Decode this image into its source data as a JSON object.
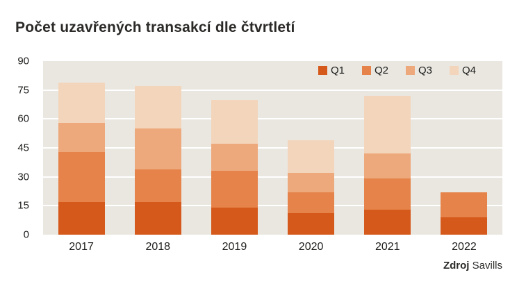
{
  "source": {
    "label": "Zdroj",
    "value": "Savills"
  },
  "chart_data": {
    "type": "bar",
    "stacked": true,
    "title": "Počet uzavřených transakcí dle čtvrtletí",
    "categories": [
      "2017",
      "2018",
      "2019",
      "2020",
      "2021",
      "2022"
    ],
    "series": [
      {
        "name": "Q1",
        "color": "#d5591b",
        "values": [
          17,
          17,
          14,
          11,
          13,
          9
        ]
      },
      {
        "name": "Q2",
        "color": "#e6834a",
        "values": [
          26,
          17,
          19,
          11,
          16,
          13
        ]
      },
      {
        "name": "Q3",
        "color": "#eda97c",
        "values": [
          15,
          21,
          14,
          10,
          13,
          0
        ]
      },
      {
        "name": "Q4",
        "color": "#f3d5bc",
        "values": [
          21,
          22,
          23,
          17,
          30,
          0
        ]
      }
    ],
    "totals": [
      79,
      77,
      70,
      49,
      72,
      22
    ],
    "xlabel": "",
    "ylabel": "",
    "ylim": [
      0,
      90
    ],
    "yticks": [
      0,
      15,
      30,
      45,
      60,
      75,
      90
    ],
    "grid": true,
    "grid_color": "#ffffff",
    "plot_bg": "#eae7e1",
    "legend_position": "top-right",
    "legend_labels": [
      "Q1",
      "Q2",
      "Q3",
      "Q4"
    ]
  }
}
